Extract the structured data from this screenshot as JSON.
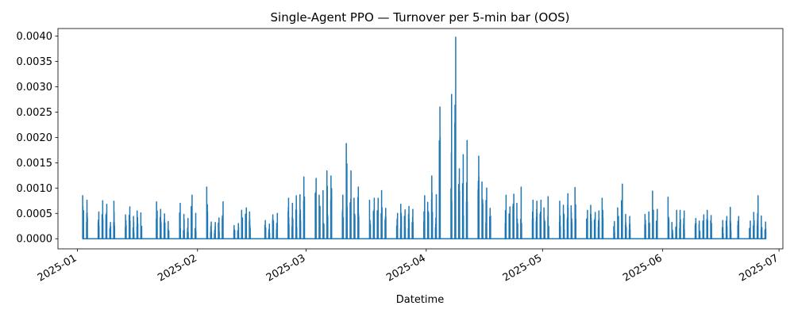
{
  "chart_data": {
    "type": "line",
    "title": "Single-Agent PPO — Turnover per 5-min bar (OOS)",
    "xlabel": "Datetime",
    "ylabel": "",
    "grid": false,
    "legend": "none",
    "xlim": [
      "2024-12-27",
      "2025-07-02"
    ],
    "ylim": [
      -0.0002,
      0.00415
    ],
    "x_ticks": [
      "2025-01",
      "2025-02",
      "2025-03",
      "2025-04",
      "2025-05",
      "2025-06",
      "2025-07"
    ],
    "y_ticks": [
      "0.0000",
      "0.0005",
      "0.0010",
      "0.0015",
      "0.0020",
      "0.0025",
      "0.0030",
      "0.0035",
      "0.0040"
    ],
    "series": [
      {
        "name": "",
        "color": "#1f77b4",
        "x": [
          "2025-01-02",
          "2025-01-03",
          "2025-01-06",
          "2025-01-07",
          "2025-01-08",
          "2025-01-09",
          "2025-01-10",
          "2025-01-13",
          "2025-01-14",
          "2025-01-15",
          "2025-01-16",
          "2025-01-17",
          "2025-01-21",
          "2025-01-22",
          "2025-01-23",
          "2025-01-24",
          "2025-01-27",
          "2025-01-28",
          "2025-01-29",
          "2025-01-30",
          "2025-01-31",
          "2025-02-03",
          "2025-02-04",
          "2025-02-05",
          "2025-02-06",
          "2025-02-07",
          "2025-02-10",
          "2025-02-11",
          "2025-02-12",
          "2025-02-13",
          "2025-02-14",
          "2025-02-18",
          "2025-02-19",
          "2025-02-20",
          "2025-02-21",
          "2025-02-24",
          "2025-02-25",
          "2025-02-26",
          "2025-02-27",
          "2025-02-28",
          "2025-03-03",
          "2025-03-04",
          "2025-03-05",
          "2025-03-06",
          "2025-03-07",
          "2025-03-10",
          "2025-03-11",
          "2025-03-12",
          "2025-03-13",
          "2025-03-14",
          "2025-03-17",
          "2025-03-18",
          "2025-03-19",
          "2025-03-20",
          "2025-03-21",
          "2025-03-24",
          "2025-03-25",
          "2025-03-26",
          "2025-03-27",
          "2025-03-28",
          "2025-03-31",
          "2025-04-01",
          "2025-04-02",
          "2025-04-03",
          "2025-04-04",
          "2025-04-07",
          "2025-04-08",
          "2025-04-09",
          "2025-04-10",
          "2025-04-11",
          "2025-04-14",
          "2025-04-15",
          "2025-04-16",
          "2025-04-17",
          "2025-04-21",
          "2025-04-22",
          "2025-04-23",
          "2025-04-24",
          "2025-04-25",
          "2025-04-28",
          "2025-04-29",
          "2025-04-30",
          "2025-05-01",
          "2025-05-02",
          "2025-05-05",
          "2025-05-06",
          "2025-05-07",
          "2025-05-08",
          "2025-05-09",
          "2025-05-12",
          "2025-05-13",
          "2025-05-14",
          "2025-05-15",
          "2025-05-16",
          "2025-05-19",
          "2025-05-20",
          "2025-05-21",
          "2025-05-22",
          "2025-05-23",
          "2025-05-27",
          "2025-05-28",
          "2025-05-29",
          "2025-05-30",
          "2025-06-02",
          "2025-06-03",
          "2025-06-04",
          "2025-06-05",
          "2025-06-06",
          "2025-06-09",
          "2025-06-10",
          "2025-06-11",
          "2025-06-12",
          "2025-06-13",
          "2025-06-16",
          "2025-06-17",
          "2025-06-18",
          "2025-06-20",
          "2025-06-23",
          "2025-06-24",
          "2025-06-25",
          "2025-06-26",
          "2025-06-27"
        ],
        "max_turnover": [
          0.00085,
          0.00076,
          0.00053,
          0.00075,
          0.00068,
          0.00032,
          0.00074,
          0.00047,
          0.00063,
          0.00044,
          0.00055,
          0.00051,
          0.00073,
          0.00058,
          0.00049,
          0.00034,
          0.0007,
          0.00048,
          0.0004,
          0.00086,
          0.0005,
          0.00102,
          0.00033,
          0.00032,
          0.00041,
          0.00073,
          0.00026,
          0.0003,
          0.00056,
          0.00061,
          0.00053,
          0.00036,
          0.00029,
          0.00047,
          0.0005,
          0.0008,
          0.0007,
          0.00085,
          0.00087,
          0.00122,
          0.00119,
          0.00086,
          0.00095,
          0.00134,
          0.00124,
          0.00086,
          0.00188,
          0.00134,
          0.0008,
          0.00102,
          0.00076,
          0.0008,
          0.0008,
          0.00095,
          0.0006,
          0.0005,
          0.00068,
          0.00057,
          0.00064,
          0.00058,
          0.00085,
          0.00072,
          0.00124,
          0.00087,
          0.0026,
          0.00285,
          0.00398,
          0.00138,
          0.00166,
          0.00194,
          0.00163,
          0.00112,
          0.001,
          0.0006,
          0.00086,
          0.00063,
          0.00088,
          0.0007,
          0.00102,
          0.00076,
          0.00074,
          0.00076,
          0.00061,
          0.00083,
          0.00074,
          0.00066,
          0.00089,
          0.00065,
          0.00101,
          0.00056,
          0.00066,
          0.00052,
          0.00055,
          0.0008,
          0.00034,
          0.00061,
          0.00108,
          0.00048,
          0.00044,
          0.00048,
          0.00053,
          0.00094,
          0.00058,
          0.00082,
          0.00032,
          0.00056,
          0.00056,
          0.00055,
          0.0004,
          0.00035,
          0.00047,
          0.00056,
          0.00046,
          0.00036,
          0.00044,
          0.00062,
          0.00044,
          0.00035,
          0.00052,
          0.00085,
          0.00045,
          0.00033
        ]
      }
    ]
  }
}
